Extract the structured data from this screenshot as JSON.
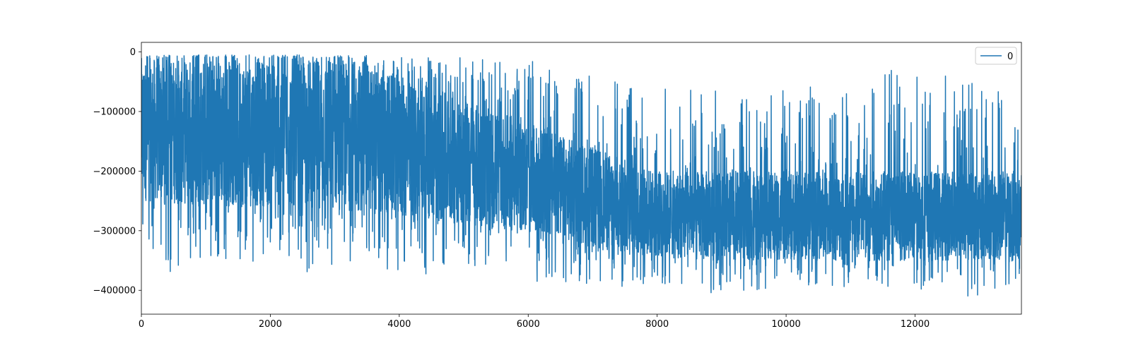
{
  "chart_data": {
    "type": "line",
    "title": "",
    "xlabel": "",
    "ylabel": "",
    "xlim": [
      0,
      13650
    ],
    "ylim": [
      -440000,
      16000
    ],
    "grid": false,
    "legend_position": "top-right",
    "x_ticks": [
      0,
      2000,
      4000,
      6000,
      8000,
      10000,
      12000
    ],
    "y_ticks": [
      0,
      -100000,
      -200000,
      -300000,
      -400000
    ],
    "x_tick_labels": [
      "0",
      "2000",
      "4000",
      "6000",
      "8000",
      "10000",
      "12000"
    ],
    "y_tick_labels": [
      "0",
      "−100000",
      "−200000",
      "−300000",
      "−400000"
    ],
    "series": [
      {
        "name": "0",
        "color": "#1f77b4",
        "x": [
          0,
          500,
          1000,
          1500,
          2000,
          2500,
          3000,
          3500,
          4000,
          4500,
          5000,
          5500,
          6000,
          6500,
          7000,
          7500,
          8000,
          8500,
          9000,
          9500,
          10000,
          10500,
          11000,
          11500,
          12000,
          12500,
          13000,
          13650
        ],
        "max": [
          -5000,
          -5000,
          -5000,
          -5000,
          -5000,
          -5000,
          -5000,
          -6000,
          -8000,
          -8000,
          -10000,
          -15000,
          -15000,
          -20000,
          -25000,
          -40000,
          -60000,
          -60000,
          -65000,
          -60000,
          -55000,
          -55000,
          -55000,
          -25000,
          -30000,
          -35000,
          -55000,
          -65000
        ],
        "min": [
          -320000,
          -380000,
          -340000,
          -370000,
          -330000,
          -370000,
          -370000,
          -340000,
          -385000,
          -370000,
          -360000,
          -370000,
          -385000,
          -385000,
          -390000,
          -400000,
          -400000,
          -410000,
          -405000,
          -400000,
          -395000,
          -395000,
          -395000,
          -395000,
          -400000,
          -395000,
          -420000,
          -385000
        ],
        "typical_high": [
          -10000,
          -10000,
          -10000,
          -10000,
          -10000,
          -10000,
          -10000,
          -20000,
          -40000,
          -60000,
          -80000,
          -100000,
          -120000,
          -140000,
          -160000,
          -180000,
          -200000,
          -200000,
          -200000,
          -200000,
          -200000,
          -200000,
          -200000,
          -200000,
          -200000,
          -200000,
          -200000,
          -200000
        ],
        "typical_low": [
          -250000,
          -255000,
          -260000,
          -260000,
          -260000,
          -260000,
          -265000,
          -270000,
          -280000,
          -285000,
          -290000,
          -295000,
          -305000,
          -315000,
          -330000,
          -340000,
          -345000,
          -350000,
          -350000,
          -350000,
          -350000,
          -350000,
          -350000,
          -350000,
          -350000,
          -350000,
          -350000,
          -350000
        ]
      }
    ]
  }
}
